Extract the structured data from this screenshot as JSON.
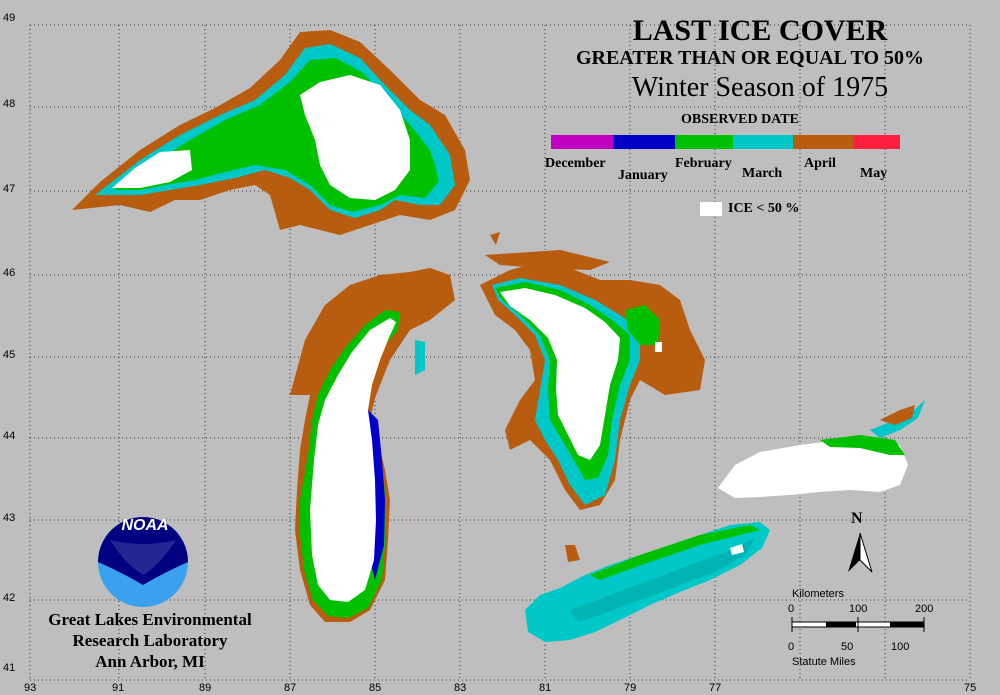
{
  "title": "LAST ICE COVER",
  "subtitle": "GREATER THAN OR EQUAL TO 50%",
  "season": "Winter Season of 1975",
  "legend": {
    "heading": "OBSERVED DATE",
    "months": [
      {
        "label": "December",
        "row": "upper"
      },
      {
        "label": "January",
        "row": "lower"
      },
      {
        "label": "February",
        "row": "upper"
      },
      {
        "label": "March",
        "row": "lower"
      },
      {
        "label": "April",
        "row": "upper"
      },
      {
        "label": "May",
        "row": "lower"
      }
    ],
    "ice_label": "ICE < 50 %"
  },
  "colors": {
    "background": "#bebebe",
    "december": "#c000c0",
    "january": "#0000c8",
    "february": "#00c000",
    "march": "#00c8c8",
    "april": "#b85c10",
    "may": "#ff2040",
    "ice_lt_50": "#ffffff"
  },
  "grid": {
    "latitude_labels": [
      "49",
      "48",
      "47",
      "46",
      "45",
      "44",
      "43",
      "42",
      "41"
    ],
    "longitude_labels": [
      "93",
      "91",
      "89",
      "87",
      "85",
      "83",
      "81",
      "79",
      "77",
      "75"
    ]
  },
  "scale_bar": {
    "top_label": "Kilometers",
    "top_ticks": [
      "0",
      "100",
      "200"
    ],
    "bottom_ticks": [
      "0",
      "50",
      "100"
    ],
    "bottom_label": "Statute Miles"
  },
  "north_label": "N",
  "logo": {
    "text": "NOAA"
  },
  "organization": {
    "line1": "Great Lakes Environmental",
    "line2": "Research Laboratory",
    "line3": "Ann Arbor, MI"
  }
}
